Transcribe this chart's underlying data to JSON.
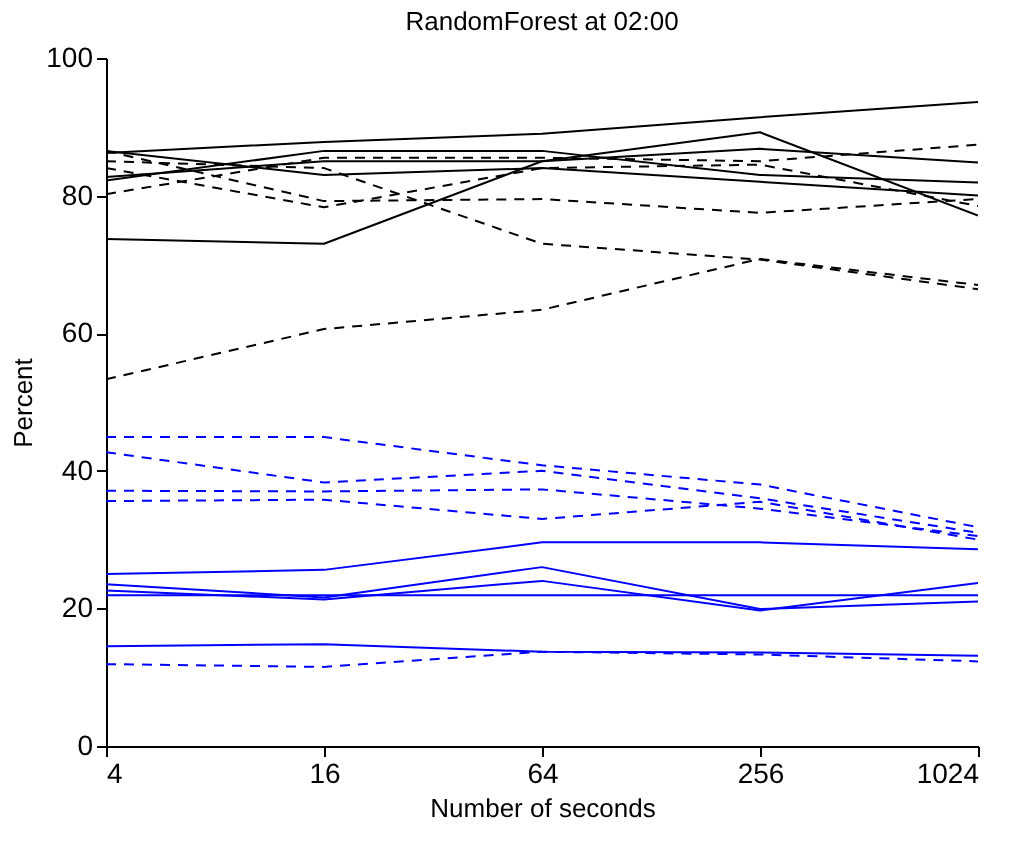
{
  "chart_data": {
    "type": "line",
    "title": "RandomForest at 02:00",
    "xlabel": "Number of seconds",
    "ylabel": "Percent",
    "x": [
      4,
      16,
      64,
      256,
      1024
    ],
    "log": "x",
    "xlim": [
      4,
      1024
    ],
    "xticks": [
      4,
      16,
      64,
      256,
      1024
    ],
    "ylim": [
      0,
      100
    ],
    "yticks": [
      0,
      20,
      40,
      60,
      80,
      100
    ],
    "grid": false,
    "marker": "none",
    "series": [
      {
        "color": "#000000",
        "line_style": "solid",
        "values": [
          86.2,
          87.8,
          89,
          91.4,
          93.6
        ]
      },
      {
        "color": "#000000",
        "line_style": "solid",
        "values": [
          73.7,
          73,
          85,
          89.2,
          77.1
        ]
      },
      {
        "color": "#000000",
        "line_style": "solid",
        "values": [
          86.5,
          83,
          84,
          82,
          80
        ]
      },
      {
        "color": "#000000",
        "line_style": "solid",
        "values": [
          82.2,
          86.5,
          86.5,
          83,
          81.9
        ]
      },
      {
        "color": "#000000",
        "line_style": "solid",
        "values": [
          82.7,
          85,
          85,
          86.8,
          84.8
        ]
      },
      {
        "color": "#000000",
        "line_style": "dashed",
        "values": [
          53.3,
          60.6,
          63.4,
          70.8,
          67
        ]
      },
      {
        "color": "#000000",
        "line_style": "dashed",
        "values": [
          85,
          84,
          73,
          70.7,
          66.4
        ]
      },
      {
        "color": "#000000",
        "line_style": "dashed",
        "values": [
          86.5,
          79.2,
          79.5,
          77.5,
          79.5
        ]
      },
      {
        "color": "#000000",
        "line_style": "dashed",
        "values": [
          80.2,
          85.5,
          85.5,
          85,
          87.4
        ]
      },
      {
        "color": "#000000",
        "line_style": "dashed",
        "values": [
          84,
          78.3,
          84,
          84.5,
          78.5
        ]
      },
      {
        "color": "#0000ff",
        "line_style": "dashed",
        "values": [
          44.9,
          44.9,
          40.8,
          38,
          31.8
        ]
      },
      {
        "color": "#0000ff",
        "line_style": "dashed",
        "values": [
          42.7,
          38.3,
          40,
          36,
          31
        ]
      },
      {
        "color": "#0000ff",
        "line_style": "dashed",
        "values": [
          37.1,
          37,
          37.3,
          34.5,
          30.5
        ]
      },
      {
        "color": "#0000ff",
        "line_style": "dashed",
        "values": [
          35.6,
          35.8,
          33,
          35.5,
          30
        ]
      },
      {
        "color": "#0000ff",
        "line_style": "dashed",
        "values": [
          11.9,
          11.5,
          13.7,
          13.3,
          12.3
        ]
      },
      {
        "color": "#0000ff",
        "line_style": "solid",
        "values": [
          25,
          25.6,
          29.6,
          29.6,
          28.6
        ]
      },
      {
        "color": "#0000ff",
        "line_style": "solid",
        "values": [
          23.5,
          21.6,
          26,
          19.9,
          21
        ]
      },
      {
        "color": "#0000ff",
        "line_style": "solid",
        "values": [
          22.6,
          21.3,
          24,
          19.7,
          23.7
        ]
      },
      {
        "color": "#0000ff",
        "line_style": "solid",
        "values": [
          21.9,
          21.9,
          21.9,
          21.9,
          21.9
        ]
      },
      {
        "color": "#0000ff",
        "line_style": "solid",
        "values": [
          14.5,
          14.8,
          13.7,
          13.6,
          13.1
        ]
      }
    ]
  }
}
